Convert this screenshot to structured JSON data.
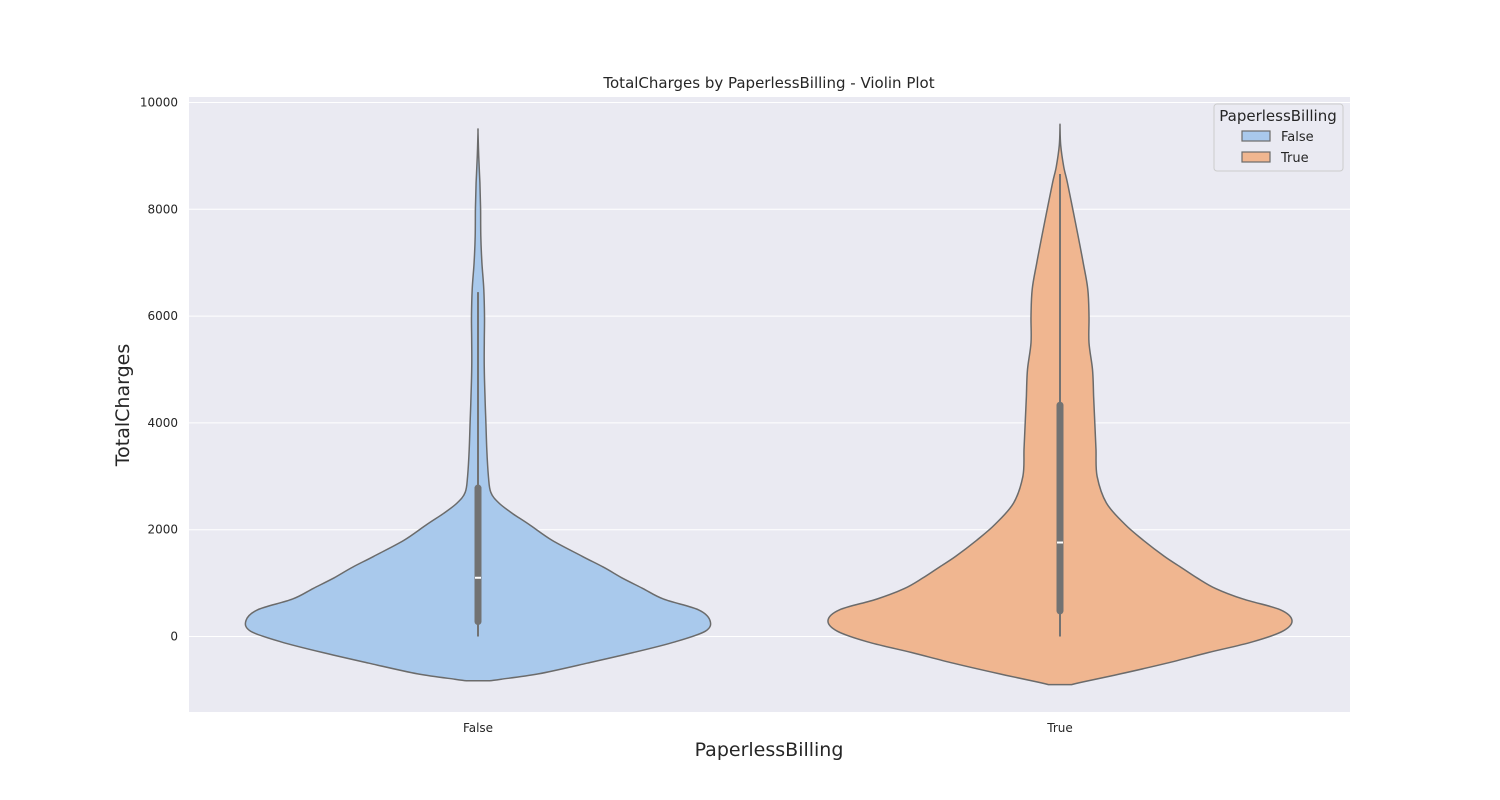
{
  "chart_data": {
    "type": "violin",
    "title": "TotalCharges by PaperlessBilling - Violin Plot",
    "xlabel": "PaperlessBilling",
    "ylabel": "TotalCharges",
    "categories": [
      "False",
      "True"
    ],
    "yticks": [
      0,
      2000,
      4000,
      6000,
      8000,
      10000
    ],
    "ylim": [
      -1400,
      10100
    ],
    "grid": true,
    "legend": {
      "title": "PaperlessBilling",
      "placement": "top-right",
      "entries": [
        "False",
        "True"
      ]
    },
    "colors": {
      "False": "#a9c9ec",
      "True": "#f0b690",
      "outline": "#6b6b6b",
      "background": "#eaeaf2",
      "grid": "#ffffff",
      "box": "#727272"
    },
    "series": [
      {
        "name": "False",
        "min": 0,
        "q1": 280,
        "median": 1100,
        "q3": 2780,
        "max": 6450,
        "density_profile": [
          [
            -830,
            0.05
          ],
          [
            -800,
            0.1
          ],
          [
            -700,
            0.26
          ],
          [
            -500,
            0.47
          ],
          [
            -300,
            0.67
          ],
          [
            -100,
            0.85
          ],
          [
            100,
            0.98
          ],
          [
            300,
            1.0
          ],
          [
            500,
            0.95
          ],
          [
            700,
            0.8
          ],
          [
            900,
            0.71
          ],
          [
            1100,
            0.62
          ],
          [
            1300,
            0.54
          ],
          [
            1500,
            0.45
          ],
          [
            1800,
            0.32
          ],
          [
            2100,
            0.22
          ],
          [
            2300,
            0.15
          ],
          [
            2500,
            0.09
          ],
          [
            2700,
            0.055
          ],
          [
            3000,
            0.045
          ],
          [
            3500,
            0.038
          ],
          [
            4000,
            0.034
          ],
          [
            4500,
            0.03
          ],
          [
            5000,
            0.027
          ],
          [
            5500,
            0.027
          ],
          [
            6000,
            0.028
          ],
          [
            6500,
            0.025
          ],
          [
            7000,
            0.017
          ],
          [
            7500,
            0.012
          ],
          [
            8000,
            0.011
          ],
          [
            8500,
            0.008
          ],
          [
            9000,
            0.003
          ],
          [
            9450,
            0.0
          ]
        ]
      },
      {
        "name": "True",
        "min": 0,
        "q1": 480,
        "median": 1760,
        "q3": 4330,
        "max": 8660,
        "density_profile": [
          [
            -900,
            0.05
          ],
          [
            -850,
            0.1
          ],
          [
            -700,
            0.26
          ],
          [
            -500,
            0.46
          ],
          [
            -300,
            0.64
          ],
          [
            -100,
            0.83
          ],
          [
            100,
            0.96
          ],
          [
            300,
            1.0
          ],
          [
            500,
            0.95
          ],
          [
            700,
            0.79
          ],
          [
            900,
            0.67
          ],
          [
            1100,
            0.59
          ],
          [
            1300,
            0.52
          ],
          [
            1500,
            0.45
          ],
          [
            1800,
            0.36
          ],
          [
            2100,
            0.28
          ],
          [
            2500,
            0.2
          ],
          [
            3000,
            0.16
          ],
          [
            3500,
            0.155
          ],
          [
            4000,
            0.15
          ],
          [
            4500,
            0.145
          ],
          [
            5000,
            0.14
          ],
          [
            5500,
            0.125
          ],
          [
            6000,
            0.125
          ],
          [
            6500,
            0.12
          ],
          [
            7000,
            0.1
          ],
          [
            7500,
            0.078
          ],
          [
            8000,
            0.055
          ],
          [
            8500,
            0.032
          ],
          [
            8800,
            0.016
          ],
          [
            9200,
            0.003
          ],
          [
            9550,
            0.0
          ]
        ]
      }
    ]
  }
}
